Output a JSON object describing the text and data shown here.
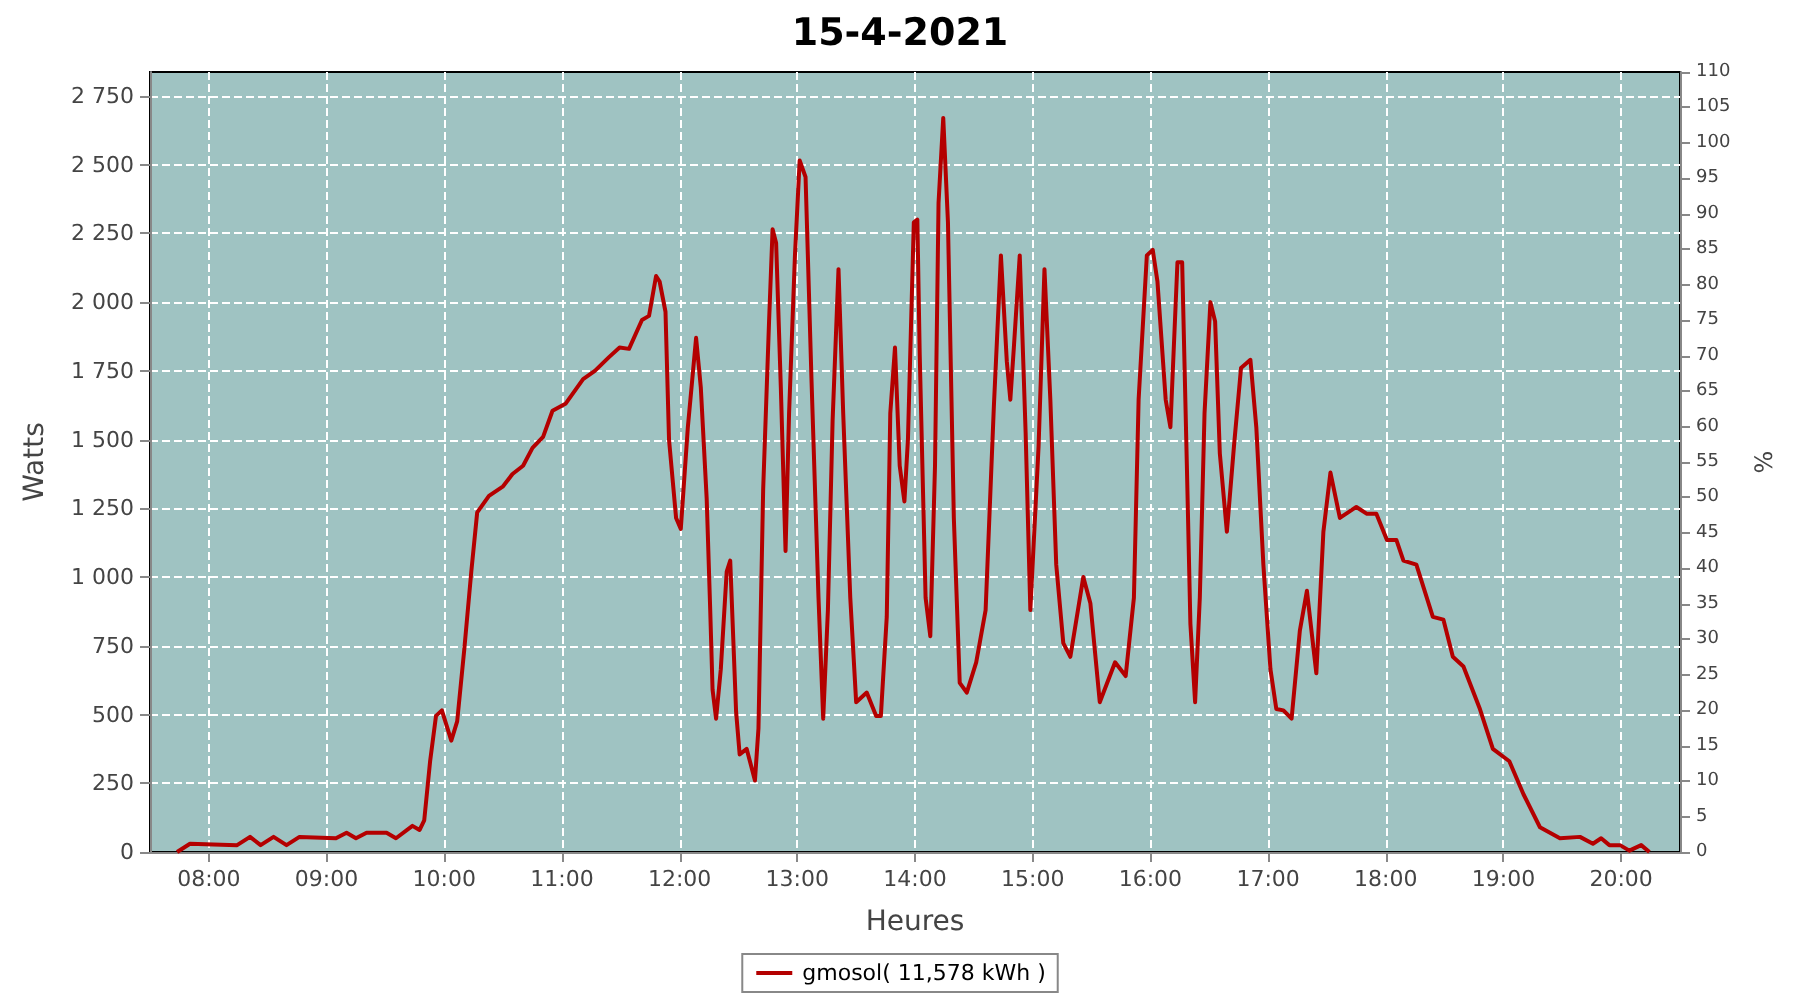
{
  "chart_data": {
    "type": "line",
    "title": "15-4-2021",
    "xlabel": "Heures",
    "ylabel": "Watts",
    "y2label": "%",
    "xlim": [
      7.5,
      20.5
    ],
    "xticks": [
      {
        "value": 8,
        "label": "08:00"
      },
      {
        "value": 9,
        "label": "09:00"
      },
      {
        "value": 10,
        "label": "10:00"
      },
      {
        "value": 11,
        "label": "11:00"
      },
      {
        "value": 12,
        "label": "12:00"
      },
      {
        "value": 13,
        "label": "13:00"
      },
      {
        "value": 14,
        "label": "14:00"
      },
      {
        "value": 15,
        "label": "15:00"
      },
      {
        "value": 16,
        "label": "16:00"
      },
      {
        "value": 17,
        "label": "17:00"
      },
      {
        "value": 18,
        "label": "18:00"
      },
      {
        "value": 19,
        "label": "19:00"
      },
      {
        "value": 20,
        "label": "20:00"
      }
    ],
    "ylim": [
      0,
      2837
    ],
    "yticks": [
      0,
      250,
      500,
      750,
      {
        "value": 1000,
        "label": "1 000"
      },
      {
        "value": 1250,
        "label": "1 250"
      },
      {
        "value": 1500,
        "label": "1 500"
      },
      {
        "value": 1750,
        "label": "1 750"
      },
      {
        "value": 2000,
        "label": "2 000"
      },
      {
        "value": 2250,
        "label": "2 250"
      },
      {
        "value": 2500,
        "label": "2 500"
      },
      {
        "value": 2750,
        "label": "2 750"
      }
    ],
    "y2lim": [
      0,
      110
    ],
    "y2ticks": [
      0,
      5,
      10,
      15,
      20,
      25,
      30,
      35,
      40,
      45,
      50,
      55,
      60,
      65,
      70,
      75,
      80,
      85,
      90,
      95,
      100,
      105,
      110
    ],
    "grid": true,
    "legend": "bottom",
    "marker": "none",
    "line_style": "solid",
    "series": [
      {
        "name": "gmosol( 11,578 kWh )",
        "color": "#b40000",
        "x": [
          7.73,
          7.84,
          8.24,
          8.35,
          8.44,
          8.55,
          8.66,
          8.77,
          9.08,
          9.17,
          9.25,
          9.34,
          9.51,
          9.59,
          9.73,
          9.79,
          9.83,
          9.88,
          9.93,
          9.98,
          10.06,
          10.11,
          10.17,
          10.23,
          10.28,
          10.38,
          10.5,
          10.58,
          10.67,
          10.75,
          10.84,
          10.92,
          11.03,
          11.18,
          11.28,
          11.4,
          11.49,
          11.57,
          11.68,
          11.74,
          11.8,
          11.83,
          11.88,
          11.91,
          11.97,
          12.01,
          12.07,
          12.14,
          12.18,
          12.23,
          12.26,
          12.28,
          12.31,
          12.35,
          12.4,
          12.43,
          12.48,
          12.51,
          12.57,
          12.64,
          12.67,
          12.71,
          12.76,
          12.79,
          12.82,
          12.86,
          12.9,
          12.93,
          12.98,
          13.02,
          13.07,
          13.12,
          13.18,
          13.22,
          13.26,
          13.3,
          13.35,
          13.39,
          13.45,
          13.5,
          13.59,
          13.67,
          13.71,
          13.76,
          13.79,
          13.83,
          13.87,
          13.91,
          13.94,
          13.99,
          14.02,
          14.04,
          14.09,
          14.13,
          14.17,
          14.2,
          14.24,
          14.28,
          14.33,
          14.38,
          14.44,
          14.52,
          14.6,
          14.67,
          14.73,
          14.78,
          14.81,
          14.84,
          14.89,
          14.94,
          14.98,
          15.05,
          15.1,
          15.15,
          15.2,
          15.26,
          15.32,
          15.43,
          15.49,
          15.57,
          15.7,
          15.79,
          15.86,
          15.9,
          15.97,
          16.02,
          16.06,
          16.13,
          16.17,
          16.23,
          16.27,
          16.31,
          16.34,
          16.38,
          16.42,
          16.46,
          16.51,
          16.55,
          16.59,
          16.65,
          16.71,
          16.77,
          16.85,
          16.9,
          16.96,
          17.02,
          17.07,
          17.13,
          17.2,
          17.27,
          17.33,
          17.41,
          17.47,
          17.53,
          17.61,
          17.75,
          17.84,
          17.92,
          18.01,
          18.09,
          18.15,
          18.26,
          18.4,
          18.49,
          18.57,
          18.66,
          18.8,
          18.91,
          19.05,
          19.17,
          19.31,
          19.48,
          19.65,
          19.76,
          19.83,
          19.9,
          19.99,
          20.07,
          20.17,
          20.24
        ],
        "values": [
          0,
          30,
          25,
          55,
          25,
          55,
          25,
          55,
          50,
          70,
          50,
          70,
          70,
          50,
          95,
          80,
          115,
          330,
          495,
          515,
          405,
          475,
          735,
          1020,
          1235,
          1295,
          1330,
          1375,
          1405,
          1470,
          1510,
          1605,
          1630,
          1720,
          1750,
          1800,
          1835,
          1830,
          1935,
          1950,
          2095,
          2075,
          1965,
          1500,
          1215,
          1175,
          1545,
          1870,
          1690,
          1285,
          880,
          590,
          485,
          665,
          1020,
          1060,
          510,
          355,
          375,
          260,
          450,
          1320,
          1930,
          2265,
          2215,
          1690,
          1095,
          1595,
          2170,
          2515,
          2455,
          1725,
          925,
          485,
          880,
          1570,
          2120,
          1595,
          925,
          545,
          580,
          495,
          495,
          855,
          1595,
          1835,
          1405,
          1275,
          1500,
          2290,
          2300,
          1810,
          925,
          785,
          1405,
          2360,
          2670,
          2290,
          1215,
          615,
          580,
          690,
          880,
          1620,
          2170,
          1785,
          1645,
          1835,
          2170,
          1525,
          880,
          1475,
          2120,
          1645,
          1045,
          760,
          710,
          1000,
          905,
          545,
          690,
          640,
          925,
          1645,
          2170,
          2190,
          2075,
          1645,
          1545,
          2145,
          2145,
          1405,
          830,
          545,
          925,
          1595,
          2000,
          1930,
          1450,
          1165,
          1475,
          1760,
          1790,
          1545,
          1045,
          665,
          520,
          515,
          485,
          805,
          950,
          650,
          1165,
          1380,
          1215,
          1255,
          1230,
          1230,
          1135,
          1135,
          1060,
          1045,
          855,
          845,
          710,
          675,
          520,
          375,
          330,
          210,
          90,
          50,
          55,
          30,
          50,
          25,
          25,
          5,
          25,
          0
        ]
      }
    ]
  }
}
